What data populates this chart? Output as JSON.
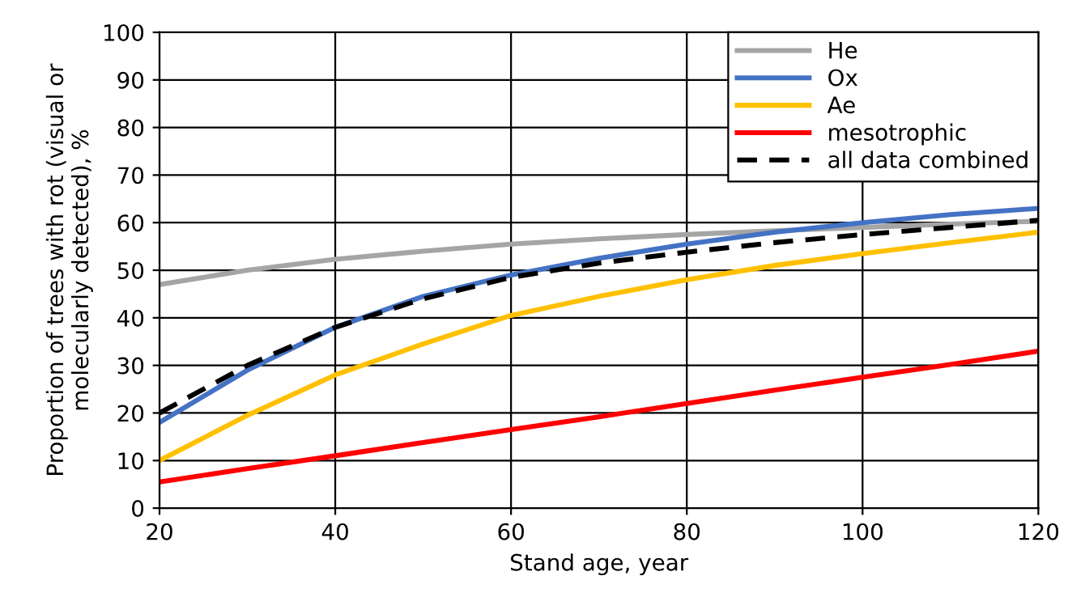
{
  "chart_data": {
    "type": "line",
    "xlabel": "Stand age, year",
    "ylabel": "Proportion of trees with rot (visual or\nmolecularly detected), %",
    "x": [
      20,
      30,
      40,
      50,
      60,
      70,
      80,
      90,
      100,
      110,
      120
    ],
    "series": [
      {
        "name": "He",
        "color": "#a5a5a5",
        "values": [
          47,
          50,
          52.3,
          54,
          55.5,
          56.6,
          57.5,
          58.3,
          59,
          59.7,
          60.3
        ]
      },
      {
        "name": "Ox",
        "color": "#4472c4",
        "values": [
          18,
          29,
          38,
          44.5,
          49,
          52.5,
          55.5,
          58,
          60,
          61.7,
          63
        ]
      },
      {
        "name": "Ae",
        "color": "#ffc000",
        "values": [
          10,
          19.5,
          28,
          34.5,
          40.5,
          44.5,
          48,
          51,
          53.5,
          55.8,
          58
        ]
      },
      {
        "name": "mesotrophic",
        "color": "#ff0000",
        "values": [
          5.5,
          8.3,
          11,
          13.8,
          16.5,
          19.2,
          22,
          24.8,
          27.5,
          30.2,
          33
        ]
      },
      {
        "name": "all data combined",
        "color": "#000000",
        "line_style": "dashed",
        "values": [
          20,
          30,
          38,
          44,
          48.5,
          51.5,
          53.8,
          55.8,
          57.5,
          59,
          60.5
        ]
      }
    ],
    "xlim": [
      20,
      120
    ],
    "xticks": [
      20,
      40,
      60,
      80,
      100,
      120
    ],
    "ylim": [
      0,
      100
    ],
    "yticks": [
      0,
      10,
      20,
      30,
      40,
      50,
      60,
      70,
      80,
      90,
      100
    ],
    "grid": true,
    "legend": "top right",
    "marker": "none",
    "line_style": "solid"
  }
}
